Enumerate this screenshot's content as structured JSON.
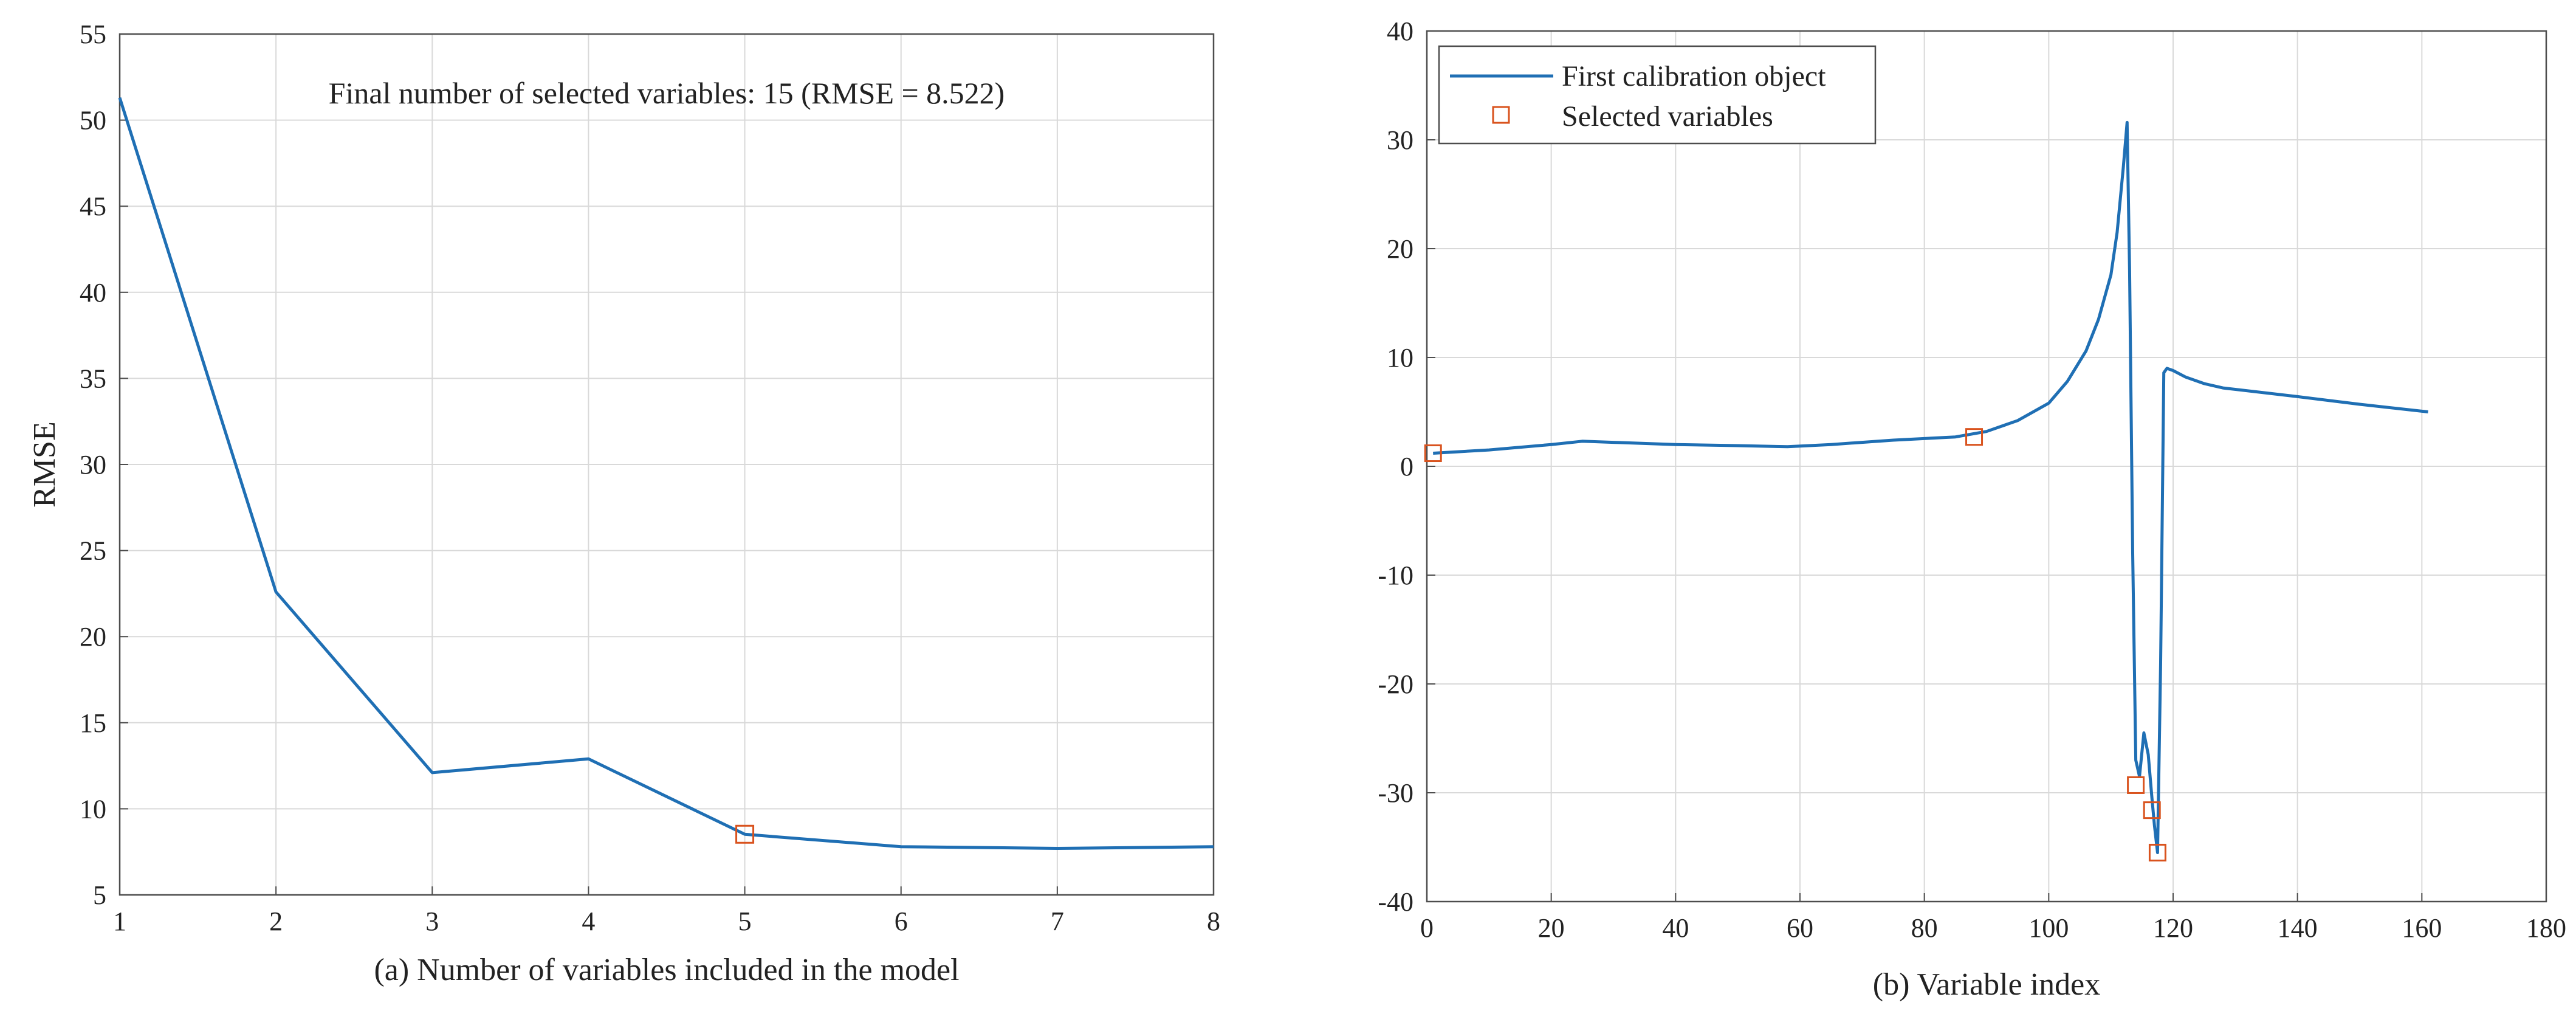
{
  "colors": {
    "line": "#1f6fb4",
    "marker": "#d9531e",
    "grid": "#d9d9d9",
    "axis": "#4d4d4d",
    "text": "#222222"
  },
  "chart_data": [
    {
      "type": "line",
      "xlabel": "(a) Number of variables included in the model",
      "ylabel": "RMSE",
      "annotation": "Final number of selected variables: 15  (RMSE = 8.522)",
      "xlim": [
        1,
        8
      ],
      "ylim": [
        5,
        55
      ],
      "grid": true,
      "xticks": [
        "1",
        "2",
        "3",
        "4",
        "5",
        "6",
        "7",
        "8"
      ],
      "yticks": [
        "5",
        "10",
        "15",
        "20",
        "25",
        "30",
        "35",
        "40",
        "45",
        "50",
        "55"
      ],
      "series": [
        {
          "name": "RMSE",
          "x": [
            1,
            2,
            3,
            4,
            5,
            6,
            7,
            8
          ],
          "y": [
            51.3,
            22.6,
            12.1,
            12.9,
            8.522,
            7.8,
            7.7,
            7.8
          ]
        }
      ],
      "selected_point": {
        "x": 5,
        "y": 8.522
      }
    },
    {
      "type": "line",
      "xlabel": "(b) Variable index",
      "ylabel": "",
      "xlim": [
        0,
        180
      ],
      "ylim": [
        -40,
        40
      ],
      "grid": true,
      "legend_position": "top-left",
      "xticks": [
        "0",
        "20",
        "40",
        "60",
        "80",
        "100",
        "120",
        "140",
        "160",
        "180"
      ],
      "yticks": [
        "-40",
        "-30",
        "-20",
        "-10",
        "0",
        "10",
        "20",
        "30",
        "40"
      ],
      "series": [
        {
          "name": "First calibration object",
          "x": [
            1,
            10,
            20,
            25,
            30,
            40,
            50,
            58,
            65,
            75,
            85,
            90,
            95,
            100,
            103,
            106,
            108,
            110,
            111,
            112,
            112.6,
            113,
            113.5,
            114,
            114.6,
            115.3,
            116,
            116.6,
            117,
            117.5,
            118,
            118.5,
            119,
            120,
            122,
            125,
            128,
            140,
            150,
            161
          ],
          "y": [
            1.2,
            1.5,
            2.0,
            2.3,
            2.2,
            2.0,
            1.9,
            1.8,
            2.0,
            2.4,
            2.7,
            3.2,
            4.2,
            5.8,
            7.8,
            10.6,
            13.5,
            17.6,
            21.5,
            27.5,
            31.6,
            18.0,
            -8.0,
            -27.0,
            -28.5,
            -24.5,
            -26.5,
            -30.5,
            -33.0,
            -35.5,
            -18.0,
            8.6,
            9.0,
            8.8,
            8.2,
            7.6,
            7.2,
            6.4,
            5.7,
            5.0
          ]
        },
        {
          "name": "Selected variables",
          "type": "scatter",
          "x": [
            1,
            88,
            114,
            116.6,
            117.5
          ],
          "y": [
            1.2,
            2.7,
            -29.3,
            -31.6,
            -35.5
          ]
        }
      ]
    }
  ]
}
